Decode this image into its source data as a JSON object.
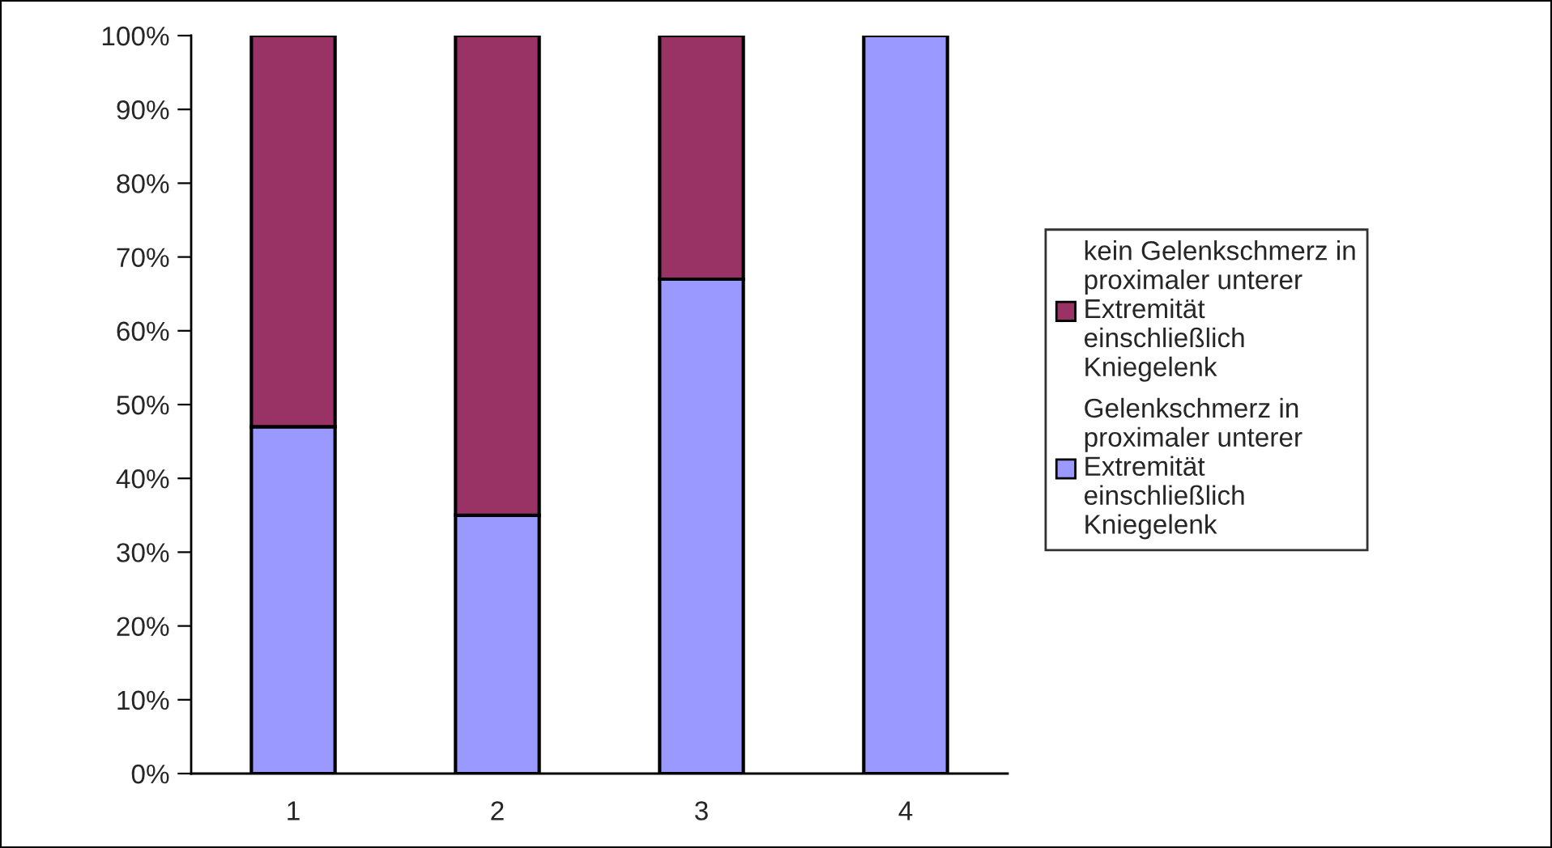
{
  "chart_data": {
    "type": "bar",
    "stacked": true,
    "categories": [
      "1",
      "2",
      "3",
      "4"
    ],
    "series": [
      {
        "name": "Gelenkschmerz in proximaler unterer Extremität einschließlich Kniegelenk",
        "color": "#9999ff",
        "values": [
          47,
          35,
          67,
          100
        ]
      },
      {
        "name": "kein Gelenkschmerz in proximaler unterer Extremität einschließlich Kniegelenk",
        "color": "#993366",
        "values": [
          53,
          65,
          33,
          0
        ]
      }
    ],
    "ylim": [
      0,
      100
    ],
    "yticks": [
      {
        "value": 0,
        "label": "0%"
      },
      {
        "value": 10,
        "label": "10%"
      },
      {
        "value": 20,
        "label": "20%"
      },
      {
        "value": 30,
        "label": "30%"
      },
      {
        "value": 40,
        "label": "40%"
      },
      {
        "value": 50,
        "label": "50%"
      },
      {
        "value": 60,
        "label": "60%"
      },
      {
        "value": 70,
        "label": "70%"
      },
      {
        "value": 80,
        "label": "80%"
      },
      {
        "value": 90,
        "label": "90%"
      },
      {
        "value": 100,
        "label": "100%"
      }
    ],
    "legend": "right",
    "grid": false
  }
}
